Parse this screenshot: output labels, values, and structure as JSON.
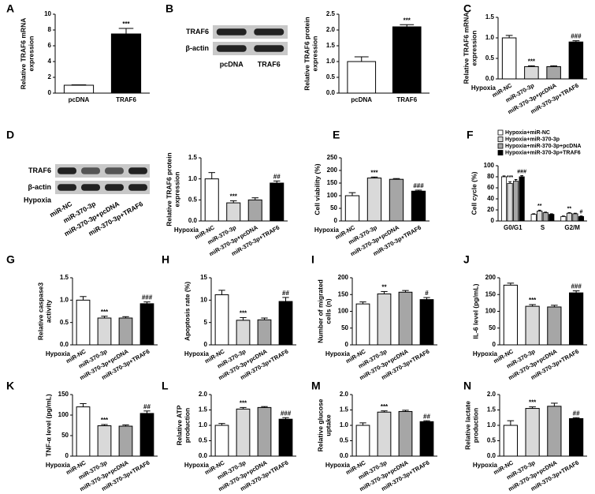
{
  "chart_data": [
    {
      "panel": "A",
      "type": "bar",
      "categories": [
        "pcDNA",
        "TRAF6"
      ],
      "values": [
        1.0,
        7.5
      ],
      "errors": [
        0.05,
        0.7
      ],
      "colors": [
        "#ffffff",
        "#000000"
      ],
      "ylim": [
        0,
        10
      ],
      "yticks": [
        0,
        2,
        4,
        6,
        8,
        10
      ],
      "ylabel": [
        "Relative TRAF6 mRNA",
        "expression"
      ],
      "annotations": [
        null,
        "***"
      ]
    },
    {
      "panel": "B",
      "type": "bar",
      "blot": {
        "rows": [
          "TRAF6",
          "β-actin"
        ],
        "lanes": [
          "pcDNA",
          "TRAF6"
        ]
      },
      "categories": [
        "pcDNA",
        "TRAF6"
      ],
      "values": [
        1.0,
        2.1
      ],
      "errors": [
        0.15,
        0.07
      ],
      "colors": [
        "#ffffff",
        "#000000"
      ],
      "ylim": [
        0,
        2.5
      ],
      "yticks": [
        {
          "value": 0,
          "label": "0.0"
        },
        0.5,
        {
          "value": 1,
          "label": "1.0"
        },
        1.5,
        {
          "value": 2,
          "label": "2.0"
        },
        2.5
      ],
      "ylabel": [
        "Relative TRAF6 protein",
        "expression"
      ],
      "annotations": [
        null,
        "***"
      ]
    },
    {
      "panel": "C",
      "type": "bar",
      "group_label": "Hypoxia",
      "categories": [
        "miR-NC",
        "miR-370-3p",
        "miR-370-3p+pcDNA",
        "miR-370-3p+TRAF6"
      ],
      "values": [
        1.0,
        0.3,
        0.3,
        0.9
      ],
      "errors": [
        0.06,
        0.02,
        0.02,
        0.03
      ],
      "colors": [
        "#ffffff",
        "#d9d9d9",
        "#a6a6a6",
        "#000000"
      ],
      "ylim": [
        0,
        1.5
      ],
      "yticks": [
        {
          "value": 0,
          "label": "0.0"
        },
        0.5,
        {
          "value": 1,
          "label": "1.0"
        },
        1.5
      ],
      "ylabel": [
        "Relative TRAF6 mRNA",
        "expression"
      ],
      "annotations": [
        null,
        "***",
        null,
        "###"
      ]
    },
    {
      "panel": "D",
      "type": "bar",
      "blot": {
        "rows": [
          "TRAF6",
          "β-actin"
        ],
        "group_label": "Hypoxia",
        "lanes": [
          "miR-NC",
          "miR-370-3p",
          "miR-370-3p+pcDNA",
          "miR-370-3p+TRAF6"
        ]
      },
      "group_label": "Hypoxia",
      "categories": [
        "miR-NC",
        "miR-370-3p",
        "miR-370-3p+pcDNA",
        "miR-370-3p+TRAF6"
      ],
      "values": [
        1.0,
        0.43,
        0.5,
        0.9
      ],
      "errors": [
        0.15,
        0.05,
        0.05,
        0.05
      ],
      "colors": [
        "#ffffff",
        "#d9d9d9",
        "#a6a6a6",
        "#000000"
      ],
      "ylim": [
        0,
        1.5
      ],
      "yticks": [
        {
          "value": 0,
          "label": "0.0"
        },
        0.5,
        {
          "value": 1,
          "label": "1.0"
        },
        1.5
      ],
      "ylabel": [
        "Relative TRAF6 protein",
        "expression"
      ],
      "annotations": [
        null,
        "***",
        null,
        "##"
      ]
    },
    {
      "panel": "E",
      "type": "bar",
      "group_label": "Hypoxia",
      "categories": [
        "miR-NC",
        "miR-370-3p",
        "miR-370-3p+pcDNA",
        "miR-370-3p+TRAF6"
      ],
      "values": [
        100,
        170,
        165,
        118
      ],
      "errors": [
        12,
        4,
        3,
        4
      ],
      "colors": [
        "#ffffff",
        "#d9d9d9",
        "#a6a6a6",
        "#000000"
      ],
      "ylim": [
        0,
        250
      ],
      "yticks": [
        0,
        50,
        100,
        150,
        200,
        250
      ],
      "ylabel": [
        "Cell viability (%)"
      ],
      "annotations": [
        null,
        "***",
        null,
        "###"
      ]
    },
    {
      "panel": "F",
      "type": "grouped_bar",
      "categories": [
        "G0/G1",
        "S",
        "G2/M"
      ],
      "series": [
        {
          "name": "Hypoxia+miR-NC",
          "color": "#ffffff",
          "values": [
            80,
            12,
            8
          ],
          "errors": [
            1.5,
            1,
            1
          ]
        },
        {
          "name": "Hypoxia+miR-370-3p",
          "color": "#d9d9d9",
          "values": [
            68,
            18,
            14
          ],
          "errors": [
            3,
            1.5,
            1
          ],
          "annotations": [
            "***",
            "**",
            "**"
          ]
        },
        {
          "name": "Hypoxia+miR-370-3p+pcDNA",
          "color": "#a6a6a6",
          "values": [
            72,
            15,
            13
          ],
          "errors": [
            3,
            1,
            1
          ]
        },
        {
          "name": "Hypoxia+miR-370-3p+TRAF6",
          "color": "#000000",
          "values": [
            80,
            12,
            8
          ],
          "errors": [
            2,
            1,
            1
          ],
          "annotations": [
            "###",
            null,
            "#"
          ]
        }
      ],
      "ylim": [
        0,
        100
      ],
      "yticks": [
        0,
        20,
        40,
        60,
        80,
        100
      ],
      "ylabel": [
        "Cell cycle (%)"
      ]
    },
    {
      "panel": "G",
      "type": "bar",
      "group_label": "Hypoxia",
      "categories": [
        "miR-NC",
        "miR-370-3p",
        "miR-370-3p+pcDNA",
        "miR-370-3p+TRAF6"
      ],
      "values": [
        1.0,
        0.6,
        0.6,
        0.92
      ],
      "errors": [
        0.08,
        0.04,
        0.03,
        0.04
      ],
      "colors": [
        "#ffffff",
        "#d9d9d9",
        "#a6a6a6",
        "#000000"
      ],
      "ylim": [
        0,
        1.5
      ],
      "yticks": [
        {
          "value": 0,
          "label": "0.0"
        },
        0.5,
        {
          "value": 1,
          "label": "1.0"
        },
        1.5
      ],
      "ylabel": [
        "Relative caspase3",
        "activity"
      ],
      "annotations": [
        null,
        "***",
        null,
        "###"
      ]
    },
    {
      "panel": "H",
      "type": "bar",
      "group_label": "Hypoxia",
      "categories": [
        "miR-NC",
        "miR-370-3p",
        "miR-370-3p+pcDNA",
        "miR-370-3p+TRAF6"
      ],
      "values": [
        11.2,
        5.5,
        5.6,
        9.7
      ],
      "errors": [
        1,
        0.6,
        0.4,
        0.9
      ],
      "colors": [
        "#ffffff",
        "#d9d9d9",
        "#a6a6a6",
        "#000000"
      ],
      "ylim": [
        0,
        15
      ],
      "yticks": [
        0,
        5,
        10,
        15
      ],
      "ylabel": [
        "Apoptosis rate (%)"
      ],
      "annotations": [
        null,
        "***",
        null,
        "##"
      ]
    },
    {
      "panel": "I",
      "type": "bar",
      "group_label": "Hypoxia",
      "categories": [
        "miR-NC",
        "miR-370-3p",
        "miR-370-3p+pcDNA",
        "miR-370-3p+TRAF6"
      ],
      "values": [
        122,
        152,
        157,
        135
      ],
      "errors": [
        6,
        7,
        5,
        6
      ],
      "colors": [
        "#ffffff",
        "#d9d9d9",
        "#a6a6a6",
        "#000000"
      ],
      "ylim": [
        0,
        200
      ],
      "yticks": [
        0,
        50,
        100,
        150,
        200
      ],
      "ylabel": [
        "Number of migrated",
        "cells (n)"
      ],
      "annotations": [
        null,
        "**",
        null,
        "#"
      ]
    },
    {
      "panel": "J",
      "type": "bar",
      "group_label": "Hypoxia",
      "categories": [
        "miR-NC",
        "miR-370-3p",
        "miR-370-3p+pcDNA",
        "miR-370-3p+TRAF6"
      ],
      "values": [
        178,
        115,
        113,
        155
      ],
      "errors": [
        6,
        5,
        5,
        6
      ],
      "colors": [
        "#ffffff",
        "#d9d9d9",
        "#a6a6a6",
        "#000000"
      ],
      "ylim": [
        0,
        200
      ],
      "yticks": [
        0,
        50,
        100,
        150,
        200
      ],
      "ylabel": [
        "IL-6 level (pg/mL)"
      ],
      "annotations": [
        null,
        "***",
        null,
        "###"
      ]
    },
    {
      "panel": "K",
      "type": "bar",
      "group_label": "Hypoxia",
      "categories": [
        "miR-NC",
        "miR-370-3p",
        "miR-370-3p+pcDNA",
        "miR-370-3p+TRAF6"
      ],
      "values": [
        120,
        74,
        73,
        104
      ],
      "errors": [
        8,
        3,
        3,
        6
      ],
      "colors": [
        "#ffffff",
        "#d9d9d9",
        "#a6a6a6",
        "#000000"
      ],
      "ylim": [
        0,
        150
      ],
      "yticks": [
        0,
        50,
        100,
        150
      ],
      "ylabel": [
        "TNF-α level (pg/mL)"
      ],
      "annotations": [
        null,
        "***",
        null,
        "##"
      ]
    },
    {
      "panel": "L",
      "type": "bar",
      "group_label": "Hypoxia",
      "categories": [
        "miR-NC",
        "miR-370-3p",
        "miR-370-3p+pcDNA",
        "miR-370-3p+TRAF6"
      ],
      "values": [
        1.0,
        1.53,
        1.58,
        1.2
      ],
      "errors": [
        0.06,
        0.05,
        0.03,
        0.05
      ],
      "colors": [
        "#ffffff",
        "#d9d9d9",
        "#a6a6a6",
        "#000000"
      ],
      "ylim": [
        0,
        2
      ],
      "yticks": [
        {
          "value": 0,
          "label": "0.0"
        },
        0.5,
        {
          "value": 1,
          "label": "1.0"
        },
        1.5,
        {
          "value": 2,
          "label": "2.0"
        }
      ],
      "ylabel": [
        "Relative ATP",
        "production"
      ],
      "annotations": [
        null,
        "***",
        null,
        "###"
      ]
    },
    {
      "panel": "M",
      "type": "bar",
      "group_label": "Hypoxia",
      "categories": [
        "miR-NC",
        "miR-370-3p",
        "miR-370-3p+pcDNA",
        "miR-370-3p+TRAF6"
      ],
      "values": [
        1.0,
        1.43,
        1.45,
        1.12
      ],
      "errors": [
        0.08,
        0.04,
        0.04,
        0.03
      ],
      "colors": [
        "#ffffff",
        "#d9d9d9",
        "#a6a6a6",
        "#000000"
      ],
      "ylim": [
        0,
        2
      ],
      "yticks": [
        {
          "value": 0,
          "label": "0.0"
        },
        0.5,
        {
          "value": 1,
          "label": "1.0"
        },
        1.5,
        {
          "value": 2,
          "label": "2.0"
        }
      ],
      "ylabel": [
        "Relative glucose",
        "uptake"
      ],
      "annotations": [
        null,
        "***",
        null,
        "##"
      ]
    },
    {
      "panel": "N",
      "type": "bar",
      "group_label": "Hypoxia",
      "categories": [
        "miR-NC",
        "miR-370-3p",
        "miR-370-3p+pcDNA",
        "miR-370-3p+TRAF6"
      ],
      "values": [
        1.0,
        1.55,
        1.62,
        1.22
      ],
      "errors": [
        0.15,
        0.05,
        0.1,
        0.03
      ],
      "colors": [
        "#ffffff",
        "#d9d9d9",
        "#a6a6a6",
        "#000000"
      ],
      "ylim": [
        0,
        2
      ],
      "yticks": [
        {
          "value": 0,
          "label": "0.0"
        },
        0.5,
        {
          "value": 1,
          "label": "1.0"
        },
        1.5,
        {
          "value": 2,
          "label": "2.0"
        }
      ],
      "ylabel": [
        "Relative lactate",
        "production"
      ],
      "annotations": [
        null,
        "***",
        null,
        "##"
      ]
    }
  ]
}
